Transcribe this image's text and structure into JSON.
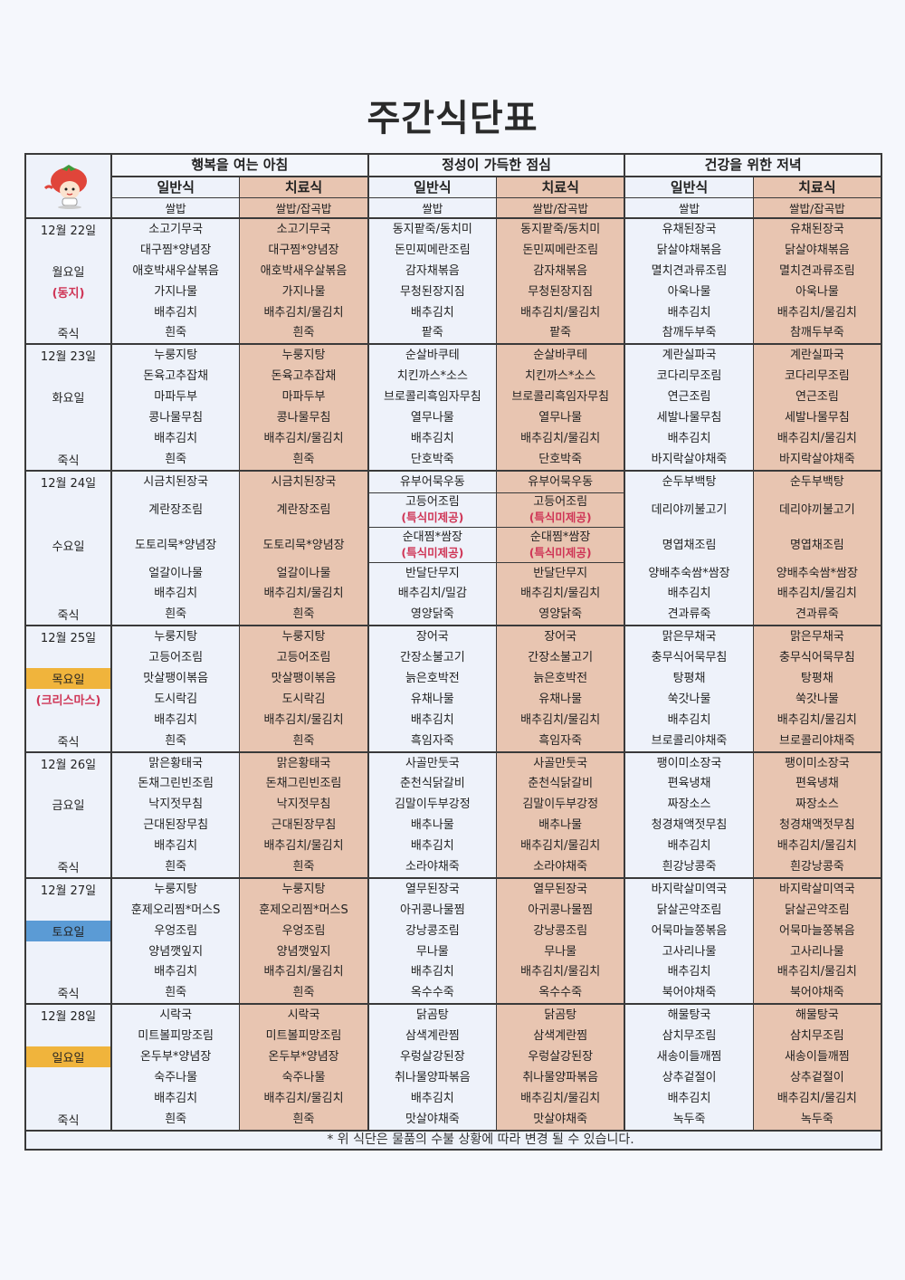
{
  "title": "주간식단표",
  "colors": {
    "therapy_bg": "#e8c5b1",
    "general_bg": "#eef2fa",
    "holiday_text": "#cf3556",
    "highlight_orange": "#f0b43c",
    "highlight_blue": "#5b9bd5"
  },
  "logo": {
    "icon": "tomato-character-logo"
  },
  "meals": [
    {
      "title": "행복을 여는 아침",
      "columns": [
        {
          "label": "일반식",
          "rice": "쌀밥"
        },
        {
          "label": "치료식",
          "rice": "쌀밥/잡곡밥"
        }
      ]
    },
    {
      "title": "정성이 가득한 점심",
      "columns": [
        {
          "label": "일반식",
          "rice": "쌀밥"
        },
        {
          "label": "치료식",
          "rice": "쌀밥/잡곡밥"
        }
      ]
    },
    {
      "title": "건강을 위한 저녁",
      "columns": [
        {
          "label": "일반식",
          "rice": "쌀밥"
        },
        {
          "label": "치료식",
          "rice": "쌀밥/잡곡밥"
        }
      ]
    }
  ],
  "days": [
    {
      "date": "12월 22일",
      "weekday": "월요일",
      "highlight": "",
      "holiday": "(동지)",
      "porridge_label": "죽식",
      "menus": [
        [
          [
            "소고기무국",
            "대구찜*양념장",
            "애호박새우살볶음",
            "가지나물",
            "배추김치",
            "흰죽"
          ],
          [
            "소고기무국",
            "대구찜*양념장",
            "애호박새우살볶음",
            "가지나물",
            "배추김치/물김치",
            "흰죽"
          ]
        ],
        [
          [
            "동지팥죽/동치미",
            "돈민찌메란조림",
            "감자채볶음",
            "무청된장지짐",
            "배추김치",
            "팥죽"
          ],
          [
            "동지팥죽/동치미",
            "돈민찌메란조림",
            "감자채볶음",
            "무청된장지짐",
            "배추김치/물김치",
            "팥죽"
          ]
        ],
        [
          [
            "유채된장국",
            "닭살야채볶음",
            "멸치견과류조림",
            "아욱나물",
            "배추김치",
            "참깨두부죽"
          ],
          [
            "유채된장국",
            "닭살야채볶음",
            "멸치견과류조림",
            "아욱나물",
            "배추김치/물김치",
            "참깨두부죽"
          ]
        ]
      ]
    },
    {
      "date": "12월 23일",
      "weekday": "화요일",
      "highlight": "",
      "holiday": "",
      "porridge_label": "죽식",
      "menus": [
        [
          [
            "누룽지탕",
            "돈육고추잡채",
            "마파두부",
            "콩나물무침",
            "배추김치",
            "흰죽"
          ],
          [
            "누룽지탕",
            "돈육고추잡채",
            "마파두부",
            "콩나물무침",
            "배추김치/물김치",
            "흰죽"
          ]
        ],
        [
          [
            "순살바쿠테",
            "치킨까스*소스",
            "브로콜리흑임자무침",
            "열무나물",
            "배추김치",
            "단호박죽"
          ],
          [
            "순살바쿠테",
            "치킨까스*소스",
            "브로콜리흑임자무침",
            "열무나물",
            "배추김치/물김치",
            "단호박죽"
          ]
        ],
        [
          [
            "계란실파국",
            "코다리무조림",
            "연근조림",
            "세발나물무침",
            "배추김치",
            "바지락살야채죽"
          ],
          [
            "계란실파국",
            "코다리무조림",
            "연근조림",
            "세발나물무침",
            "배추김치/물김치",
            "바지락살야채죽"
          ]
        ]
      ]
    },
    {
      "date": "12월 24일",
      "weekday": "수요일",
      "highlight": "",
      "holiday": "",
      "porridge_label": "죽식",
      "menus": [
        [
          [
            "시금치된장국",
            "계란장조림",
            "도토리묵*양념장",
            "얼갈이나물",
            "배추김치",
            "흰죽"
          ],
          [
            "시금치된장국",
            "계란장조림",
            "도토리묵*양념장",
            "얼갈이나물",
            "배추김치/물김치",
            "흰죽"
          ]
        ],
        [
          [
            "유부어묵우동",
            {
              "name": "고등어조림",
              "note": "(특식미제공)"
            },
            {
              "name": "순대찜*쌈장",
              "note": "(특식미제공)"
            },
            "반달단무지",
            "배추김치/밀감",
            "영양닭죽"
          ],
          [
            "유부어묵우동",
            {
              "name": "고등어조림",
              "note": "(특식미제공)"
            },
            {
              "name": "순대찜*쌈장",
              "note": "(특식미제공)"
            },
            "반달단무지",
            "배추김치/물김치",
            "영양닭죽"
          ]
        ],
        [
          [
            "순두부백탕",
            "데리야끼불고기",
            "명엽채조림",
            "양배추숙쌈*쌈장",
            "배추김치",
            "견과류죽"
          ],
          [
            "순두부백탕",
            "데리야끼불고기",
            "명엽채조림",
            "양배추숙쌈*쌈장",
            "배추김치/물김치",
            "견과류죽"
          ]
        ]
      ]
    },
    {
      "date": "12월 25일",
      "weekday": "목요일",
      "highlight": "#f0b43c",
      "holiday": "(크리스마스)",
      "porridge_label": "죽식",
      "menus": [
        [
          [
            "누룽지탕",
            "고등어조림",
            "맛살팽이볶음",
            "도시락김",
            "배추김치",
            "흰죽"
          ],
          [
            "누룽지탕",
            "고등어조림",
            "맛살팽이볶음",
            "도시락김",
            "배추김치/물김치",
            "흰죽"
          ]
        ],
        [
          [
            "장어국",
            "간장소불고기",
            "늙은호박전",
            "유채나물",
            "배추김치",
            "흑임자죽"
          ],
          [
            "장어국",
            "간장소불고기",
            "늙은호박전",
            "유채나물",
            "배추김치/물김치",
            "흑임자죽"
          ]
        ],
        [
          [
            "맑은무채국",
            "충무식어묵무침",
            "탕평채",
            "쑥갓나물",
            "배추김치",
            "브로콜리야채죽"
          ],
          [
            "맑은무채국",
            "충무식어묵무침",
            "탕평채",
            "쑥갓나물",
            "배추김치/물김치",
            "브로콜리야채죽"
          ]
        ]
      ]
    },
    {
      "date": "12월 26일",
      "weekday": "금요일",
      "highlight": "",
      "holiday": "",
      "porridge_label": "죽식",
      "menus": [
        [
          [
            "맑은황태국",
            "돈채그린빈조림",
            "낙지젓무침",
            "근대된장무침",
            "배추김치",
            "흰죽"
          ],
          [
            "맑은황태국",
            "돈채그린빈조림",
            "낙지젓무침",
            "근대된장무침",
            "배추김치/물김치",
            "흰죽"
          ]
        ],
        [
          [
            "사골만둣국",
            "춘천식닭갈비",
            "김말이두부강정",
            "배추나물",
            "배추김치",
            "소라야채죽"
          ],
          [
            "사골만둣국",
            "춘천식닭갈비",
            "김말이두부강정",
            "배추나물",
            "배추김치/물김치",
            "소라야채죽"
          ]
        ],
        [
          [
            "팽이미소장국",
            "편육냉채",
            "짜장소스",
            "청경채액젓무침",
            "배추김치",
            "흰강낭콩죽"
          ],
          [
            "팽이미소장국",
            "편육냉채",
            "짜장소스",
            "청경채액젓무침",
            "배추김치/물김치",
            "흰강낭콩죽"
          ]
        ]
      ]
    },
    {
      "date": "12월 27일",
      "weekday": "토요일",
      "highlight": "#5b9bd5",
      "holiday": "",
      "porridge_label": "죽식",
      "menus": [
        [
          [
            "누룽지탕",
            "훈제오리찜*머스S",
            "우엉조림",
            "양념깻잎지",
            "배추김치",
            "흰죽"
          ],
          [
            "누룽지탕",
            "훈제오리찜*머스S",
            "우엉조림",
            "양념깻잎지",
            "배추김치/물김치",
            "흰죽"
          ]
        ],
        [
          [
            "열무된장국",
            "아귀콩나물찜",
            "강낭콩조림",
            "무나물",
            "배추김치",
            "옥수수죽"
          ],
          [
            "열무된장국",
            "아귀콩나물찜",
            "강낭콩조림",
            "무나물",
            "배추김치/물김치",
            "옥수수죽"
          ]
        ],
        [
          [
            "바지락살미역국",
            "닭살곤약조림",
            "어묵마늘쫑볶음",
            "고사리나물",
            "배추김치",
            "북어야채죽"
          ],
          [
            "바지락살미역국",
            "닭살곤약조림",
            "어묵마늘쫑볶음",
            "고사리나물",
            "배추김치/물김치",
            "북어야채죽"
          ]
        ]
      ]
    },
    {
      "date": "12월 28일",
      "weekday": "일요일",
      "highlight": "#f0b43c",
      "holiday": "",
      "porridge_label": "죽식",
      "menus": [
        [
          [
            "시락국",
            "미트볼피망조림",
            "온두부*양념장",
            "숙주나물",
            "배추김치",
            "흰죽"
          ],
          [
            "시락국",
            "미트볼피망조림",
            "온두부*양념장",
            "숙주나물",
            "배추김치/물김치",
            "흰죽"
          ]
        ],
        [
          [
            "닭곰탕",
            "삼색계란찜",
            "우렁살강된장",
            "취나물양파볶음",
            "배추김치",
            "맛살야채죽"
          ],
          [
            "닭곰탕",
            "삼색계란찜",
            "우렁살강된장",
            "취나물양파볶음",
            "배추김치/물김치",
            "맛살야채죽"
          ]
        ],
        [
          [
            "해물탕국",
            "삼치무조림",
            "새송이들깨찜",
            "상추겉절이",
            "배추김치",
            "녹두죽"
          ],
          [
            "해물탕국",
            "삼치무조림",
            "새송이들깨찜",
            "상추겉절이",
            "배추김치/물김치",
            "녹두죽"
          ]
        ]
      ]
    }
  ],
  "footer_note": "* 위 식단은 물품의 수불 상황에 따라 변경 될 수 있습니다."
}
